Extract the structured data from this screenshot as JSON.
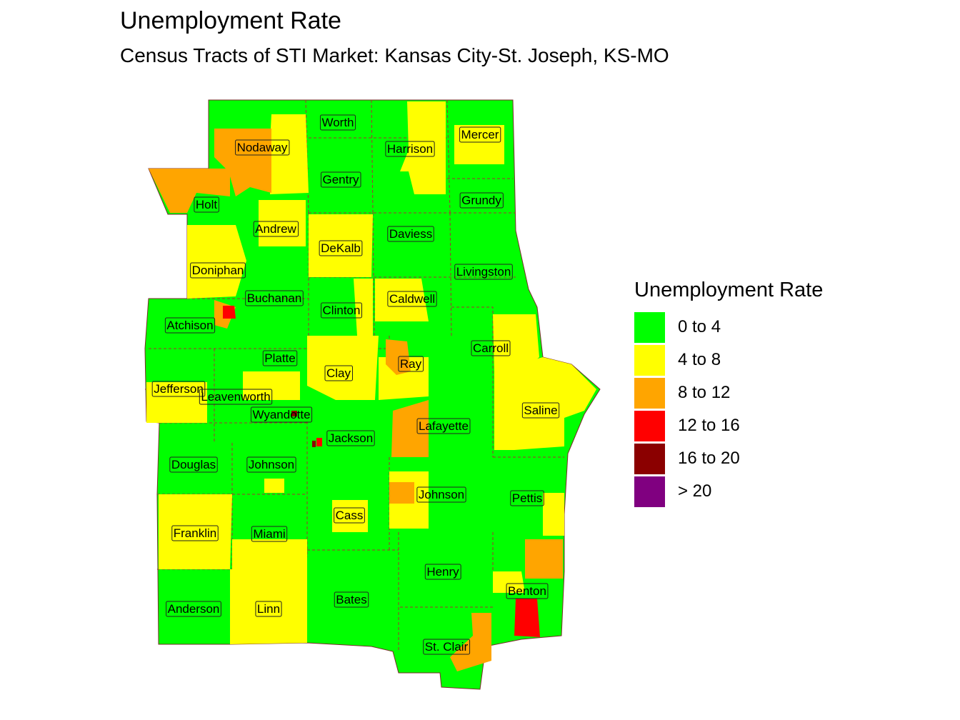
{
  "title": "Unemployment Rate",
  "subtitle": "Census Tracts of STI Market: Kansas City-St. Joseph, KS-MO",
  "legend": {
    "title": "Unemployment Rate",
    "items": [
      {
        "label": "0 to 4",
        "color": "#00ff00"
      },
      {
        "label": "4 to 8",
        "color": "#ffff00"
      },
      {
        "label": "8 to 12",
        "color": "#ffa500"
      },
      {
        "label": "12 to 16",
        "color": "#ff0000"
      },
      {
        "label": "16 to 20",
        "color": "#8b0000"
      },
      {
        "label": "> 20",
        "color": "#800080"
      }
    ]
  },
  "counties": [
    {
      "name": "Worth",
      "rate_class": "0 to 4"
    },
    {
      "name": "Nodaway",
      "rate_class": "8 to 12"
    },
    {
      "name": "Harrison",
      "rate_class": "0 to 4"
    },
    {
      "name": "Mercer",
      "rate_class": "0 to 4"
    },
    {
      "name": "Gentry",
      "rate_class": "0 to 4"
    },
    {
      "name": "Grundy",
      "rate_class": "0 to 4"
    },
    {
      "name": "Holt",
      "rate_class": "0 to 4"
    },
    {
      "name": "Andrew",
      "rate_class": "0 to 4"
    },
    {
      "name": "Daviess",
      "rate_class": "0 to 4"
    },
    {
      "name": "DeKalb",
      "rate_class": "4 to 8"
    },
    {
      "name": "Doniphan",
      "rate_class": "4 to 8"
    },
    {
      "name": "Livingston",
      "rate_class": "0 to 4"
    },
    {
      "name": "Buchanan",
      "rate_class": "0 to 4"
    },
    {
      "name": "Caldwell",
      "rate_class": "4 to 8"
    },
    {
      "name": "Clinton",
      "rate_class": "0 to 4"
    },
    {
      "name": "Atchison",
      "rate_class": "0 to 4"
    },
    {
      "name": "Carroll",
      "rate_class": "0 to 4"
    },
    {
      "name": "Platte",
      "rate_class": "0 to 4"
    },
    {
      "name": "Ray",
      "rate_class": "4 to 8"
    },
    {
      "name": "Clay",
      "rate_class": "0 to 4"
    },
    {
      "name": "Jefferson",
      "rate_class": "0 to 4"
    },
    {
      "name": "Leavenworth",
      "rate_class": "0 to 4"
    },
    {
      "name": "Saline",
      "rate_class": "4 to 8"
    },
    {
      "name": "Wyandotte",
      "rate_class": "4 to 8"
    },
    {
      "name": "Lafayette",
      "rate_class": "0 to 4"
    },
    {
      "name": "Jackson",
      "rate_class": "0 to 4"
    },
    {
      "name": "Douglas",
      "rate_class": "0 to 4"
    },
    {
      "name": "Johnson (KS)",
      "rate_class": "0 to 4"
    },
    {
      "name": "Johnson (MO)",
      "rate_class": "0 to 4"
    },
    {
      "name": "Pettis",
      "rate_class": "0 to 4"
    },
    {
      "name": "Cass",
      "rate_class": "0 to 4"
    },
    {
      "name": "Franklin",
      "rate_class": "4 to 8"
    },
    {
      "name": "Miami",
      "rate_class": "0 to 4"
    },
    {
      "name": "Henry",
      "rate_class": "0 to 4"
    },
    {
      "name": "Benton",
      "rate_class": "0 to 4"
    },
    {
      "name": "Bates",
      "rate_class": "0 to 4"
    },
    {
      "name": "Anderson",
      "rate_class": "0 to 4"
    },
    {
      "name": "Linn",
      "rate_class": "4 to 8"
    },
    {
      "name": "St. Clair",
      "rate_class": "0 to 4"
    }
  ]
}
